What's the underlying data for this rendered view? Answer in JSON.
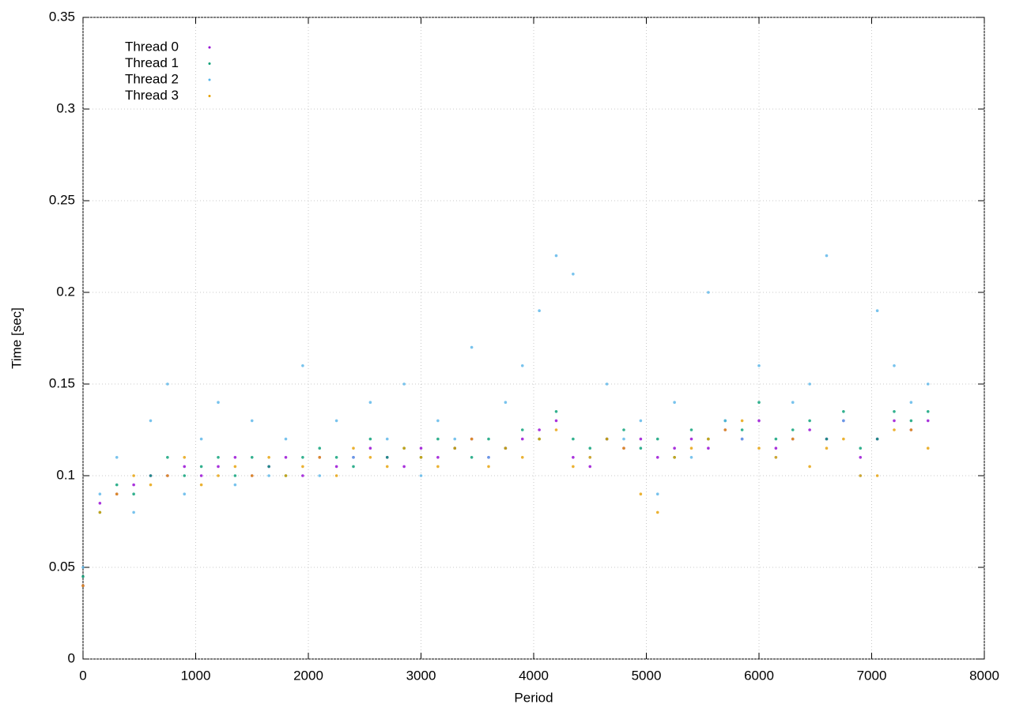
{
  "chart_data": {
    "type": "scatter",
    "xlabel": "Period",
    "ylabel": "Time [sec]",
    "xlim": [
      0,
      8000
    ],
    "ylim": [
      0,
      0.35
    ],
    "xticks": [
      0,
      1000,
      2000,
      3000,
      4000,
      5000,
      6000,
      7000,
      8000
    ],
    "yticks": [
      0,
      0.05,
      0.1,
      0.15,
      0.2,
      0.25,
      0.3,
      0.35
    ],
    "grid": true,
    "legend": "top-left",
    "x": [
      0,
      150,
      300,
      450,
      600,
      750,
      900,
      1050,
      1200,
      1350,
      1500,
      1650,
      1800,
      1950,
      2100,
      2250,
      2400,
      2550,
      2700,
      2850,
      3000,
      3150,
      3300,
      3450,
      3600,
      3750,
      3900,
      4050,
      4200,
      4350,
      4500,
      4650,
      4800,
      4950,
      5100,
      5250,
      5400,
      5550,
      5700,
      5850,
      6000,
      6150,
      6300,
      6450,
      6600,
      6750,
      6900,
      7050,
      7200,
      7350,
      7500
    ],
    "series": [
      {
        "name": "Thread 0",
        "color": "#9400d3",
        "values": [
          0.04,
          0.085,
          0.09,
          0.095,
          0.1,
          0.1,
          0.105,
          0.1,
          0.105,
          0.11,
          0.1,
          0.105,
          0.11,
          0.1,
          0.11,
          0.105,
          0.11,
          0.115,
          0.11,
          0.105,
          0.115,
          0.11,
          0.115,
          0.12,
          0.11,
          0.115,
          0.12,
          0.125,
          0.13,
          0.11,
          0.105,
          0.12,
          0.115,
          0.12,
          0.11,
          0.115,
          0.12,
          0.115,
          0.125,
          0.12,
          0.13,
          0.115,
          0.12,
          0.125,
          0.12,
          0.13,
          0.11,
          0.12,
          0.13,
          0.125,
          0.13
        ]
      },
      {
        "name": "Thread 1",
        "color": "#009e73",
        "values": [
          0.045,
          0.08,
          0.095,
          0.09,
          0.1,
          0.11,
          0.1,
          0.105,
          0.11,
          0.1,
          0.11,
          0.105,
          0.1,
          0.11,
          0.115,
          0.11,
          0.105,
          0.12,
          0.11,
          0.115,
          0.11,
          0.12,
          0.115,
          0.11,
          0.12,
          0.115,
          0.125,
          0.12,
          0.135,
          0.12,
          0.115,
          0.12,
          0.125,
          0.115,
          0.12,
          0.11,
          0.125,
          0.12,
          0.13,
          0.125,
          0.14,
          0.12,
          0.125,
          0.13,
          0.12,
          0.135,
          0.115,
          0.12,
          0.135,
          0.13,
          0.135
        ]
      },
      {
        "name": "Thread 2",
        "color": "#56b4e9",
        "values": [
          0.05,
          0.09,
          0.11,
          0.08,
          0.13,
          0.15,
          0.09,
          0.12,
          0.14,
          0.095,
          0.13,
          0.1,
          0.12,
          0.16,
          0.1,
          0.13,
          0.11,
          0.14,
          0.12,
          0.15,
          0.1,
          0.13,
          0.12,
          0.17,
          0.11,
          0.14,
          0.16,
          0.19,
          0.22,
          0.21,
          0.11,
          0.15,
          0.12,
          0.13,
          0.09,
          0.14,
          0.11,
          0.2,
          0.13,
          0.12,
          0.16,
          0.11,
          0.14,
          0.15,
          0.22,
          0.13,
          0.1,
          0.19,
          0.16,
          0.14,
          0.15
        ]
      },
      {
        "name": "Thread 3",
        "color": "#e69f00",
        "values": [
          0.04,
          0.08,
          0.09,
          0.1,
          0.095,
          0.1,
          0.11,
          0.095,
          0.1,
          0.105,
          0.1,
          0.11,
          0.1,
          0.105,
          0.11,
          0.1,
          0.115,
          0.11,
          0.105,
          0.115,
          0.11,
          0.105,
          0.115,
          0.12,
          0.105,
          0.115,
          0.11,
          0.12,
          0.125,
          0.105,
          0.11,
          0.12,
          0.115,
          0.09,
          0.08,
          0.11,
          0.115,
          0.12,
          0.125,
          0.13,
          0.115,
          0.11,
          0.12,
          0.105,
          0.115,
          0.12,
          0.1,
          0.1,
          0.125,
          0.125,
          0.115
        ]
      }
    ]
  }
}
